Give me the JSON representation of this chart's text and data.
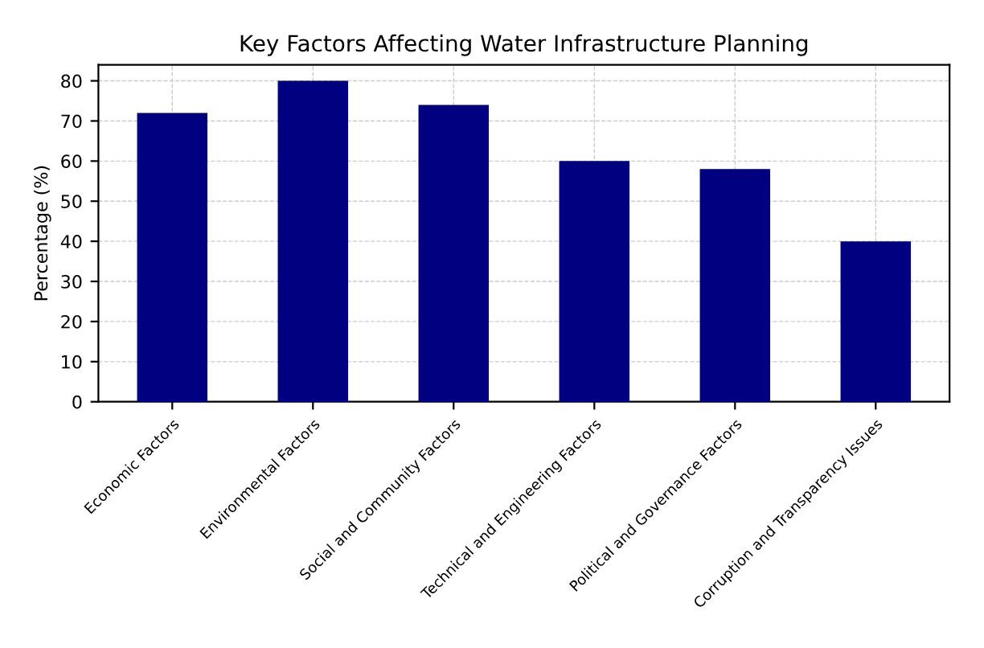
{
  "chart_data": {
    "type": "bar",
    "title": "Key Factors Affecting Water Infrastructure Planning",
    "ylabel": "Percentage (%)",
    "categories": [
      "Economic Factors",
      "Environmental Factors",
      "Social and Community Factors",
      "Technical and Engineering Factors",
      "Political and Governance Factors",
      "Corruption and Transparency Issues"
    ],
    "values": [
      72,
      80,
      74,
      60,
      58,
      40
    ],
    "color": "#000080",
    "ylim": [
      0,
      84
    ],
    "yticks": [
      0,
      10,
      20,
      30,
      40,
      50,
      60,
      70,
      80
    ],
    "grid": true
  }
}
